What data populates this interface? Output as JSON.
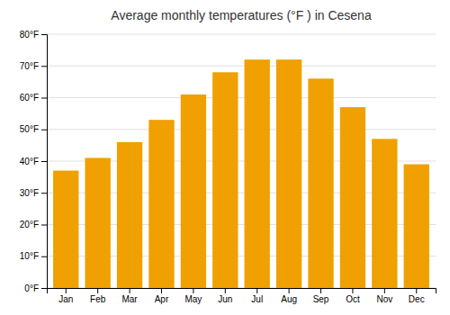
{
  "chart_data": {
    "type": "bar",
    "title": "Average monthly temperatures (°F ) in Cesena",
    "categories": [
      "Jan",
      "Feb",
      "Mar",
      "Apr",
      "May",
      "Jun",
      "Jul",
      "Aug",
      "Sep",
      "Oct",
      "Nov",
      "Dec"
    ],
    "values": [
      37,
      41,
      46,
      53,
      61,
      68,
      72,
      72,
      66,
      57,
      47,
      39
    ],
    "color": "#f0a000",
    "ylim": [
      0,
      80
    ],
    "yticks": [
      {
        "value": 0,
        "label": "0°F"
      },
      {
        "value": 10,
        "label": "10°F"
      },
      {
        "value": 20,
        "label": "20°F"
      },
      {
        "value": 30,
        "label": "30°F"
      },
      {
        "value": 40,
        "label": "40°F"
      },
      {
        "value": 50,
        "label": "50°F"
      },
      {
        "value": 60,
        "label": "60°F"
      },
      {
        "value": 70,
        "label": "70°F"
      },
      {
        "value": 80,
        "label": "80°F"
      }
    ],
    "grid": true
  }
}
